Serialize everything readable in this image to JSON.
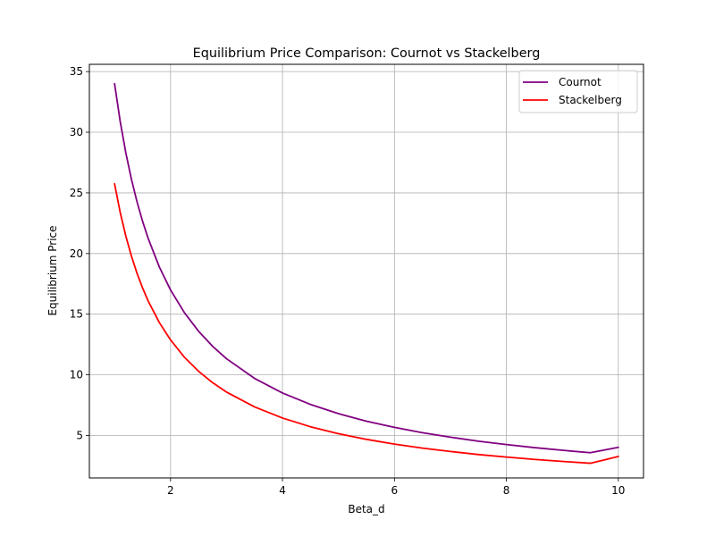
{
  "chart_data": {
    "type": "line",
    "title": "Equilibrium Price Comparison: Cournot vs Stackelberg",
    "xlabel": "Beta_d",
    "ylabel": "Equilibrium Price",
    "xlim": [
      0.55,
      10.45
    ],
    "ylim": [
      1.5,
      35.6
    ],
    "xticks": [
      2,
      4,
      6,
      8,
      10
    ],
    "yticks": [
      5,
      10,
      15,
      20,
      25,
      30,
      35
    ],
    "grid": true,
    "legend_position": "upper right",
    "x": [
      1.0,
      1.1,
      1.2,
      1.3,
      1.4,
      1.5,
      1.6,
      1.8,
      2.0,
      2.25,
      2.5,
      2.75,
      3.0,
      3.5,
      4.0,
      4.5,
      5.0,
      5.5,
      6.0,
      6.5,
      7.0,
      7.5,
      8.0,
      8.5,
      9.0,
      9.5,
      10.0
    ],
    "series": [
      {
        "name": "Cournot",
        "color": "#800080",
        "values": [
          34.0,
          30.91,
          28.33,
          26.15,
          24.29,
          22.67,
          21.25,
          18.89,
          17.0,
          15.11,
          13.6,
          12.36,
          11.33,
          9.71,
          8.5,
          7.56,
          6.8,
          6.18,
          5.67,
          5.23,
          4.86,
          4.53,
          4.25,
          4.0,
          3.78,
          3.58,
          4.02
        ]
      },
      {
        "name": "Stackelberg",
        "color": "#ff0000",
        "values": [
          25.75,
          23.41,
          21.46,
          19.81,
          18.39,
          17.17,
          16.09,
          14.31,
          12.88,
          11.44,
          10.3,
          9.36,
          8.58,
          7.36,
          6.44,
          5.72,
          5.15,
          4.68,
          4.29,
          3.96,
          3.68,
          3.43,
          3.22,
          3.03,
          2.86,
          2.71,
          3.27
        ]
      }
    ]
  }
}
